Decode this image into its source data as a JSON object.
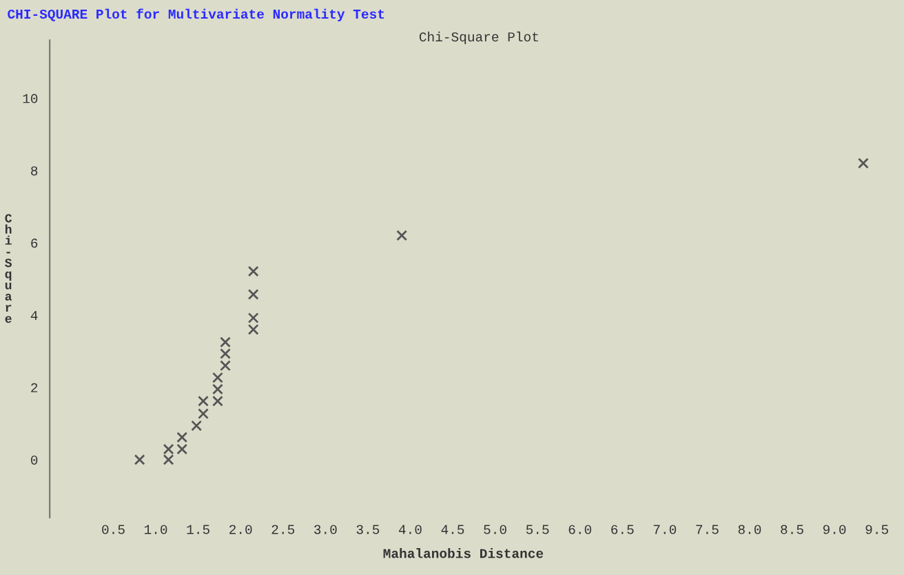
{
  "chart_data": {
    "type": "scatter",
    "title": "CHI-SQUARE Plot for Multivariate Normality Test",
    "subtitle": "Chi-Square Plot",
    "xlabel": "Mahalanobis Distance",
    "ylabel": "Chi-Square",
    "x": [
      0.81,
      1.15,
      1.15,
      1.31,
      1.31,
      1.48,
      1.56,
      1.56,
      1.73,
      1.73,
      1.73,
      1.82,
      1.82,
      1.82,
      2.15,
      2.15,
      2.15,
      2.15,
      3.9,
      9.34
    ],
    "series": [
      {
        "color": "#555555",
        "values": [
          0,
          0,
          0.29,
          0.29,
          0.62,
          0.94,
          1.27,
          1.62,
          1.62,
          1.95,
          2.27,
          2.6,
          2.93,
          3.25,
          3.6,
          3.92,
          4.57,
          5.21,
          6.2,
          8.2
        ]
      }
    ],
    "marker": "cross",
    "grid": false,
    "xlim": [
      -0.25,
      9.5
    ],
    "xticks": [
      {
        "value": 0.5,
        "label": "0.5"
      },
      {
        "value": 1,
        "label": "1.0"
      },
      {
        "value": 1.5,
        "label": "1.5"
      },
      {
        "value": 2,
        "label": "2.0"
      },
      {
        "value": 2.5,
        "label": "2.5"
      },
      {
        "value": 3,
        "label": "3.0"
      },
      {
        "value": 3.5,
        "label": "3.5"
      },
      {
        "value": 4,
        "label": "4.0"
      },
      {
        "value": 4.5,
        "label": "4.5"
      },
      {
        "value": 5,
        "label": "5.0"
      },
      {
        "value": 5.5,
        "label": "5.5"
      },
      {
        "value": 6,
        "label": "6.0"
      },
      {
        "value": 6.5,
        "label": "6.5"
      },
      {
        "value": 7,
        "label": "7.0"
      },
      {
        "value": 7.5,
        "label": "7.5"
      },
      {
        "value": 8,
        "label": "8.0"
      },
      {
        "value": 8.5,
        "label": "8.5"
      },
      {
        "value": 9,
        "label": "9.0"
      },
      {
        "value": 9.5,
        "label": "9.5"
      }
    ],
    "ylim": [
      -1.6,
      11.6
    ],
    "yticks": [
      0,
      2,
      4,
      6,
      8,
      10
    ]
  }
}
